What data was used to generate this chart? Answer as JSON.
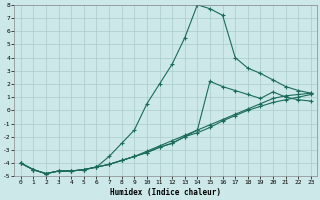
{
  "xlabel": "Humidex (Indice chaleur)",
  "ylabel": "",
  "xlim": [
    -0.5,
    23.5
  ],
  "ylim": [
    -5,
    8
  ],
  "xticks": [
    0,
    1,
    2,
    3,
    4,
    5,
    6,
    7,
    8,
    9,
    10,
    11,
    12,
    13,
    14,
    15,
    16,
    17,
    18,
    19,
    20,
    21,
    22,
    23
  ],
  "yticks": [
    -5,
    -4,
    -3,
    -2,
    -1,
    0,
    1,
    2,
    3,
    4,
    5,
    6,
    7,
    8
  ],
  "background_color": "#cce8e8",
  "grid_color": "#aacccc",
  "line_color": "#1a6b5a",
  "line_high_x": [
    0,
    1,
    2,
    3,
    4,
    5,
    6,
    7,
    8,
    9,
    10,
    11,
    12,
    13,
    14,
    15,
    16,
    17,
    18,
    19,
    20,
    21,
    22,
    23
  ],
  "line_high_y": [
    -4.0,
    -4.5,
    -4.8,
    -4.6,
    -4.6,
    -4.5,
    -4.3,
    -3.5,
    -2.5,
    -1.5,
    0.5,
    2.0,
    3.5,
    5.5,
    8.0,
    7.7,
    7.2,
    4.0,
    3.2,
    2.8,
    2.3,
    1.8,
    1.5,
    1.3
  ],
  "line_mid_x": [
    0,
    1,
    2,
    3,
    4,
    5,
    6,
    7,
    8,
    9,
    10,
    11,
    12,
    13,
    14,
    15,
    16,
    17,
    18,
    19,
    20,
    21,
    22,
    23
  ],
  "line_mid_y": [
    -4.0,
    -4.5,
    -4.8,
    -4.6,
    -4.6,
    -4.5,
    -4.3,
    -4.1,
    -3.8,
    -3.5,
    -3.2,
    -2.8,
    -2.5,
    -2.0,
    -1.5,
    2.2,
    1.8,
    1.5,
    1.2,
    0.9,
    1.4,
    1.0,
    0.8,
    0.7
  ],
  "line_low1_x": [
    0,
    1,
    2,
    3,
    4,
    5,
    6,
    7,
    8,
    9,
    10,
    11,
    12,
    13,
    14,
    15,
    16,
    17,
    18,
    19,
    20,
    21,
    22,
    23
  ],
  "line_low1_y": [
    -4.0,
    -4.5,
    -4.8,
    -4.6,
    -4.6,
    -4.5,
    -4.3,
    -4.1,
    -3.8,
    -3.5,
    -3.2,
    -2.8,
    -2.5,
    -2.0,
    -1.7,
    -1.3,
    -0.8,
    -0.4,
    0.0,
    0.3,
    0.6,
    0.8,
    1.0,
    1.2
  ],
  "line_low2_x": [
    0,
    1,
    2,
    3,
    4,
    5,
    6,
    7,
    8,
    9,
    10,
    11,
    12,
    13,
    14,
    15,
    16,
    17,
    18,
    19,
    20,
    21,
    22,
    23
  ],
  "line_low2_y": [
    -4.0,
    -4.5,
    -4.8,
    -4.6,
    -4.6,
    -4.5,
    -4.3,
    -4.1,
    -3.8,
    -3.5,
    -3.1,
    -2.7,
    -2.3,
    -1.9,
    -1.5,
    -1.1,
    -0.7,
    -0.3,
    0.1,
    0.5,
    0.9,
    1.1,
    1.2,
    1.3
  ]
}
